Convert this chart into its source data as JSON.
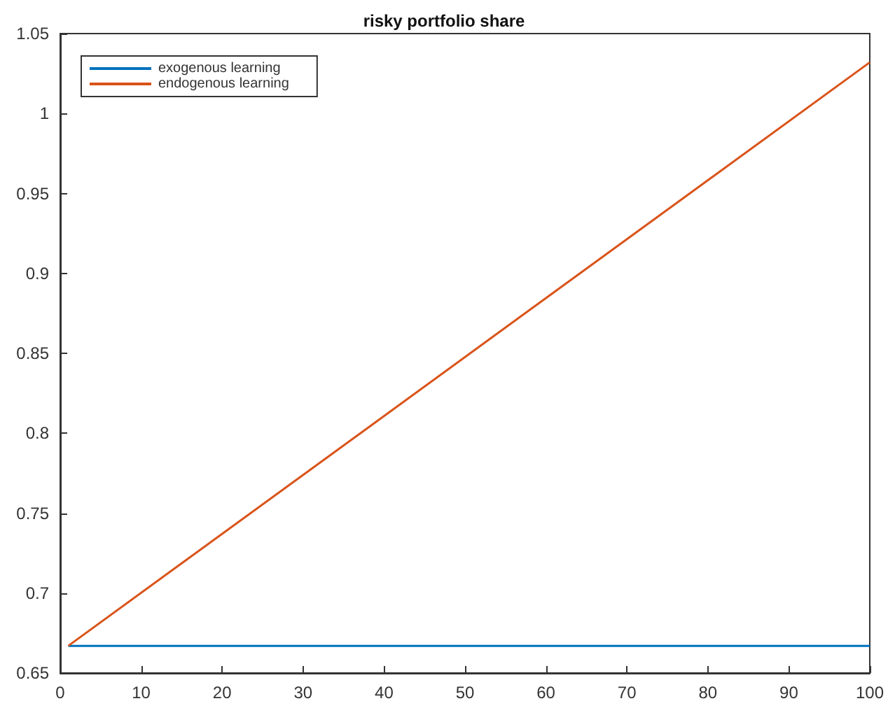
{
  "chart_data": {
    "type": "line",
    "title": "risky portfolio share",
    "x": [
      1,
      100
    ],
    "series": [
      {
        "name": "exogenous learning",
        "color": "#0072bd",
        "values": [
          0.667,
          0.667
        ]
      },
      {
        "name": "endogenous learning",
        "color": "#d95319",
        "values": [
          0.667,
          1.032
        ]
      }
    ],
    "xlim": [
      0,
      100
    ],
    "xticks": [
      0,
      10,
      20,
      30,
      40,
      50,
      60,
      70,
      80,
      90,
      100
    ],
    "ylim": [
      0.65,
      1.05
    ],
    "yticks": [
      0.65,
      0.7,
      0.75,
      0.8,
      0.85,
      0.9,
      0.95,
      1,
      1.05
    ],
    "legend": "top left",
    "grid": false,
    "marker": "none",
    "line_style": "solid"
  }
}
